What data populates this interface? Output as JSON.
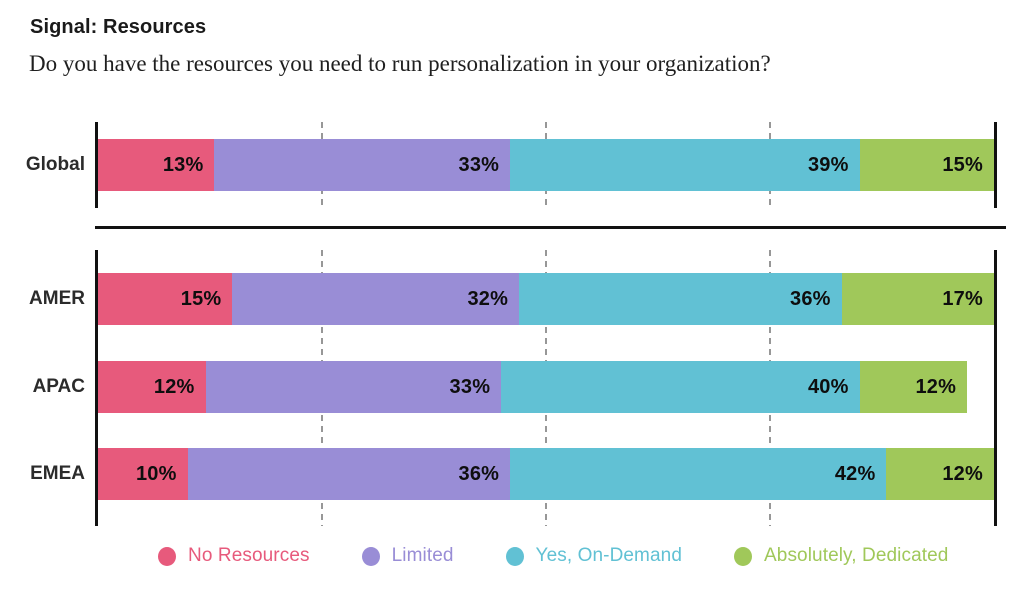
{
  "header": {
    "title": "Signal: Resources",
    "subtitle": "Do you have the resources you need to run personalization in your organization?"
  },
  "chart_data": {
    "type": "bar",
    "stacked": true,
    "orientation": "horizontal",
    "unit": "percent",
    "xlim": [
      0,
      100
    ],
    "gridlines_percent": [
      25,
      50,
      75
    ],
    "grid_style": "dashed",
    "legend_position": "bottom",
    "row_groups": [
      [
        "Global"
      ],
      [
        "AMER",
        "APAC",
        "EMEA"
      ]
    ],
    "categories": [
      "Global",
      "AMER",
      "APAC",
      "EMEA"
    ],
    "series": [
      {
        "name": "No Resources",
        "color": "#E75A7C",
        "values": [
          13,
          15,
          12,
          10
        ]
      },
      {
        "name": "Limited",
        "color": "#998DD6",
        "values": [
          33,
          32,
          33,
          36
        ]
      },
      {
        "name": "Yes, On-Demand",
        "color": "#61C1D4",
        "values": [
          39,
          36,
          40,
          42
        ]
      },
      {
        "name": "Absolutely, Dedicated",
        "color": "#A0C85A",
        "values": [
          15,
          17,
          12,
          12
        ]
      }
    ],
    "data_label_format": "{value}%",
    "axis_color": "#111111",
    "gridline_color": "#979797"
  }
}
